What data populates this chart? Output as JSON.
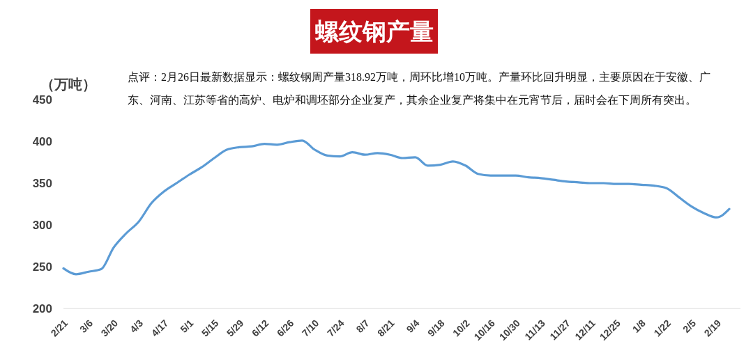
{
  "chart_data": {
    "type": "line",
    "title": "螺纹钢产量",
    "ylabel": "（万吨）",
    "annotations": [
      "点评：2月26日最新数据显示：螺纹钢周产量318.92万吨，周环比增10万吨。产量环比回升明显，主要原因在于安徽、广东、河南、江苏等省的高炉、电炉和调坯部分企业复产，其余企业复产将集中在元宵节后，届时会在下周所有突出。"
    ],
    "categories": [
      "2/21",
      null,
      "3/6",
      null,
      "3/20",
      null,
      "4/3",
      null,
      "4/17",
      null,
      "5/1",
      null,
      "5/15",
      null,
      "5/29",
      null,
      "6/12",
      null,
      "6/26",
      null,
      "7/10",
      null,
      "7/24",
      null,
      "8/7",
      null,
      "8/21",
      null,
      "9/4",
      null,
      "9/18",
      null,
      "10/2",
      null,
      "10/16",
      null,
      "10/30",
      null,
      "11/13",
      null,
      "11/27",
      null,
      "12/11",
      null,
      "12/25",
      null,
      "1/8",
      null,
      "1/22",
      null,
      "2/5",
      null,
      "2/19",
      null
    ],
    "values": [
      248,
      241,
      244,
      247,
      273,
      290,
      304,
      326,
      340,
      350,
      360,
      369,
      380,
      390,
      393,
      394,
      397,
      396,
      399,
      401,
      390,
      383,
      382,
      387,
      384,
      386,
      384,
      380,
      381,
      371,
      372,
      376,
      371,
      361,
      359,
      359,
      359,
      357,
      356,
      354,
      352,
      351,
      350,
      350,
      349,
      349,
      348,
      347,
      344,
      333,
      322,
      314,
      309,
      319
    ],
    "color": "#5b9bd5",
    "ylim": [
      200,
      450
    ],
    "yticks": [
      200,
      250,
      300,
      350,
      400,
      450
    ],
    "marker": "none",
    "line_style": "solid"
  }
}
